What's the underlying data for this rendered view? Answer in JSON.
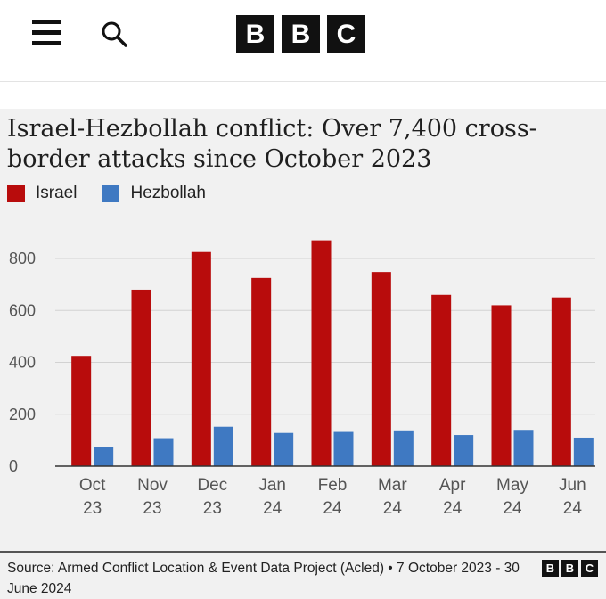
{
  "header": {
    "logo_letters": [
      "B",
      "B",
      "C"
    ],
    "menu_icon": "hamburger-menu-icon",
    "search_icon": "search-icon"
  },
  "chart_data": {
    "type": "bar",
    "title": "Israel-Hezbollah conflict: Over 7,400 cross-border attacks since October 2023",
    "categories": [
      [
        "Oct",
        "23"
      ],
      [
        "Nov",
        "23"
      ],
      [
        "Dec",
        "23"
      ],
      [
        "Jan",
        "24"
      ],
      [
        "Feb",
        "24"
      ],
      [
        "Mar",
        "24"
      ],
      [
        "Apr",
        "24"
      ],
      [
        "May",
        "24"
      ],
      [
        "Jun",
        "24"
      ]
    ],
    "series": [
      {
        "name": "Israel",
        "color": "#b80c0c",
        "values": [
          425,
          680,
          825,
          725,
          870,
          748,
          660,
          620,
          650
        ]
      },
      {
        "name": "Hezbollah",
        "color": "#3f79c2",
        "values": [
          75,
          108,
          152,
          128,
          132,
          138,
          120,
          140,
          110
        ]
      }
    ],
    "yticks": [
      0,
      200,
      400,
      600,
      800
    ],
    "ylim": [
      0,
      900
    ],
    "grid": true,
    "legend_position": "top-left"
  },
  "footer": {
    "source": "Source: Armed Conflict Location & Event Data Project (Acled) • 7 October 2023 - 30 June 2024",
    "logo_letters": [
      "B",
      "B",
      "C"
    ]
  }
}
